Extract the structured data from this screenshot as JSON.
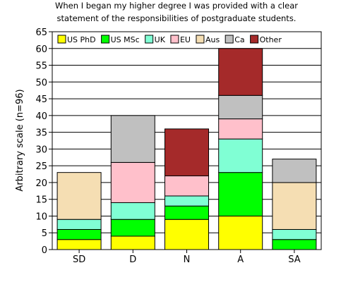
{
  "chart_data": {
    "type": "bar",
    "stacked": true,
    "title": [
      "When I began my higher degree I was provided with a clear",
      "statement of the responsibilities of postgraduate students."
    ],
    "xlabel": "",
    "ylabel": "Arbitrary scale (n=96)",
    "ylim": [
      0,
      65
    ],
    "yticks": [
      0,
      5,
      10,
      15,
      20,
      25,
      30,
      35,
      40,
      45,
      50,
      55,
      60,
      65
    ],
    "grid": true,
    "legend_position": "top",
    "categories": [
      "SD",
      "D",
      "N",
      "A",
      "SA"
    ],
    "series": [
      {
        "name": "US PhD",
        "color": "#ffff00",
        "values": [
          3,
          4,
          9,
          10,
          0
        ]
      },
      {
        "name": "US MSc",
        "color": "#00ff00",
        "values": [
          3,
          5,
          4,
          13,
          3
        ]
      },
      {
        "name": "UK",
        "color": "#80ffd4",
        "values": [
          3,
          5,
          3,
          10,
          3
        ]
      },
      {
        "name": "EU",
        "color": "#ffc0cb",
        "values": [
          0,
          12,
          6,
          6,
          0
        ]
      },
      {
        "name": "Aus",
        "color": "#f5deb3",
        "values": [
          14,
          0,
          0,
          0,
          14
        ]
      },
      {
        "name": "Ca",
        "color": "#c0c0c0",
        "values": [
          0,
          14,
          0,
          7,
          7
        ]
      },
      {
        "name": "Other",
        "color": "#a52a2a",
        "values": [
          0,
          0,
          14,
          14,
          0
        ]
      }
    ]
  }
}
